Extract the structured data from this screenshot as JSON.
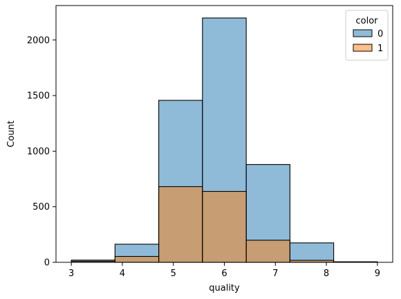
{
  "chart_data": {
    "type": "bar",
    "subtype": "overlapping-histogram",
    "xlabel": "quality",
    "ylabel": "Count",
    "xlim": [
      2.7,
      9.3
    ],
    "ylim": [
      0,
      2310
    ],
    "x_ticks": [
      3,
      4,
      5,
      6,
      7,
      8,
      9
    ],
    "y_ticks": [
      0,
      500,
      1000,
      1500,
      2000
    ],
    "bin_edges": [
      3,
      3.857,
      4.714,
      5.571,
      6.429,
      7.286,
      8.143,
      9
    ],
    "series": [
      {
        "name": "0",
        "color": "#1f77b4",
        "values": [
          20,
          163,
          1457,
          2198,
          880,
          175,
          5
        ]
      },
      {
        "name": "1",
        "color": "#ff7f0e",
        "values": [
          10,
          53,
          681,
          638,
          199,
          18,
          0
        ]
      }
    ],
    "legend": {
      "title": "color",
      "position": "top-right"
    },
    "grid": false
  }
}
